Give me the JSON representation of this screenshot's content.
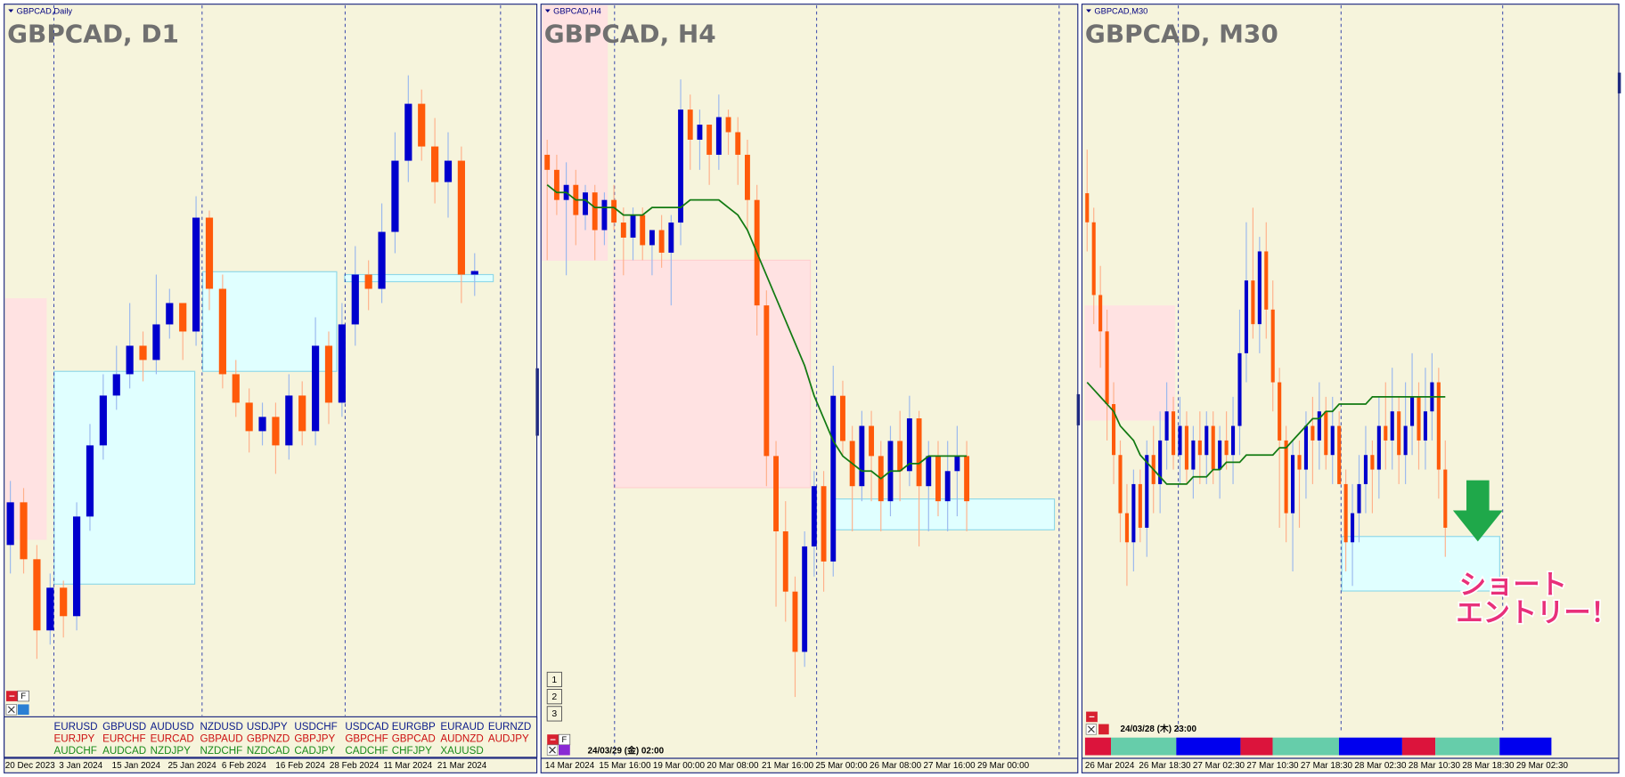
{
  "chart_data": [
    {
      "type": "candlestick",
      "small_label": "GBPCAD,Daily",
      "title": "GBPCAD, D1",
      "x_labels": [
        "20 Dec 2023",
        "3 Jan 2024",
        "15 Jan 2024",
        "25 Jan 2024",
        "6 Feb 2024",
        "16 Feb 2024",
        "28 Feb 2024",
        "11 Mar 2024",
        "21 Mar 2024"
      ],
      "ylim": [
        0,
        100
      ],
      "bull_color": "#0000cd",
      "bear_color": "#ff5a0a",
      "bull_wick_color": "#9ab8ee",
      "bear_wick_color": "#ffb08a",
      "open": [
        24,
        30,
        22,
        12,
        18,
        14,
        28,
        38,
        45,
        48,
        52,
        50,
        55,
        58,
        54,
        70,
        60,
        48,
        44,
        40,
        42,
        38,
        45,
        40,
        52,
        44,
        55,
        62,
        60,
        68,
        78,
        86,
        80,
        75,
        78,
        62
      ],
      "high": [
        33,
        32,
        24,
        20,
        19,
        30,
        41,
        48,
        52,
        58,
        54,
        62,
        60,
        58,
        73,
        71,
        62,
        50,
        46,
        44,
        44,
        48,
        47,
        56,
        54,
        58,
        66,
        64,
        72,
        82,
        90,
        88,
        84,
        82,
        80,
        65
      ],
      "low": [
        20,
        20,
        8,
        10,
        11,
        12,
        26,
        36,
        43,
        46,
        47,
        48,
        53,
        50,
        52,
        57,
        46,
        42,
        37,
        38,
        34,
        36,
        38,
        38,
        41,
        42,
        52,
        57,
        58,
        65,
        75,
        78,
        72,
        70,
        58,
        59
      ],
      "close": [
        30,
        22,
        12,
        18,
        14,
        28,
        38,
        45,
        48,
        52,
        50,
        55,
        58,
        54,
        70,
        60,
        48,
        44,
        40,
        42,
        38,
        45,
        40,
        52,
        44,
        55,
        62,
        60,
        68,
        78,
        86,
        80,
        75,
        78,
        62,
        62.5
      ],
      "zones": [
        {
          "x": [
            -0.5,
            2.7
          ],
          "y": [
            24.8,
            58.6
          ],
          "color": "#ffe2e2",
          "border": "#ffe2e2"
        },
        {
          "x": [
            3.3,
            13.9
          ],
          "y": [
            18.5,
            48.4
          ],
          "color": "#e0ffff",
          "border": "#8fd8e8"
        },
        {
          "x": [
            14.5,
            24.6
          ],
          "y": [
            48.4,
            62.4
          ],
          "color": "#e0ffff",
          "border": "#8fd8e8"
        },
        {
          "x": [
            25.2,
            36.4
          ],
          "y": [
            61,
            62
          ],
          "color": "#e0ffff",
          "border": "#8fd8e8"
        }
      ],
      "lines": []
    },
    {
      "type": "candlestick",
      "small_label": "GBPCAD,H4",
      "title": "GBPCAD, H4",
      "x_labels": [
        "14 Mar 2024",
        "15 Mar 16:00",
        "19 Mar 00:00",
        "20 Mar 08:00",
        "21 Mar 16:00",
        "25 Mar 00:00",
        "26 Mar 08:00",
        "27 Mar 16:00",
        "29 Mar 00:00"
      ],
      "datetime": "24/03/29 (金) 02:00",
      "buttons": [
        "1",
        "2",
        "3"
      ],
      "ylim": [
        0,
        100
      ],
      "bull_color": "#0000cd",
      "bear_color": "#ff5a0a",
      "bull_wick_color": "#9ab8ee",
      "bear_wick_color": "#ffb08a",
      "open": [
        80,
        78,
        74,
        76,
        72,
        75,
        70,
        74,
        71,
        69,
        72,
        68,
        70,
        67,
        71,
        86,
        82,
        84,
        80,
        85,
        83,
        80,
        74,
        60,
        40,
        30,
        22,
        14,
        28,
        36,
        26,
        48,
        42,
        36,
        44,
        40,
        34,
        42,
        38,
        45,
        36,
        40,
        34,
        38,
        40
      ],
      "high": [
        82,
        80,
        79,
        78,
        76,
        76,
        75,
        76,
        73,
        73,
        73,
        70,
        72,
        72,
        90,
        88,
        86,
        84,
        88,
        86,
        85,
        82,
        76,
        62,
        42,
        34,
        24,
        30,
        38,
        38,
        52,
        50,
        44,
        46,
        46,
        42,
        44,
        46,
        48,
        46,
        42,
        42,
        42,
        44,
        42
      ],
      "low": [
        66,
        72,
        64,
        68,
        70,
        66,
        68,
        70,
        64,
        66,
        66,
        64,
        65,
        60,
        68,
        78,
        78,
        76,
        78,
        80,
        76,
        70,
        56,
        36,
        20,
        18,
        8,
        12,
        24,
        22,
        24,
        40,
        30,
        34,
        34,
        30,
        32,
        34,
        36,
        28,
        30,
        32,
        30,
        32,
        30
      ],
      "close": [
        78,
        74,
        76,
        72,
        75,
        70,
        74,
        71,
        69,
        72,
        68,
        70,
        67,
        71,
        86,
        82,
        84,
        80,
        85,
        83,
        80,
        74,
        60,
        40,
        30,
        22,
        14,
        28,
        36,
        26,
        48,
        42,
        36,
        44,
        40,
        34,
        42,
        38,
        45,
        36,
        40,
        34,
        38,
        40,
        34
      ],
      "zones": [
        {
          "x": [
            -0.5,
            6.3
          ],
          "y": [
            66,
            100
          ],
          "color": "#ffe2e2",
          "border": "#ffe2e2"
        },
        {
          "x": [
            7,
            27.6
          ],
          "y": [
            35.8,
            66
          ],
          "color": "#ffe2e2",
          "border": "#ffd0d0"
        },
        {
          "x": [
            30.1,
            53.2
          ],
          "y": [
            30.2,
            34.3
          ],
          "color": "#e0ffff",
          "border": "#8fd8e8"
        }
      ],
      "lines": [
        {
          "color": "#127a12",
          "values": [
            76,
            75,
            75,
            74,
            74,
            73,
            73,
            73,
            72,
            72,
            72,
            73,
            73,
            73,
            73,
            74,
            74,
            74,
            74,
            73,
            72,
            70,
            67,
            64,
            61,
            58,
            55,
            52,
            48,
            45,
            42,
            40,
            39,
            38,
            38,
            37,
            38,
            38,
            39,
            39,
            40,
            40,
            40,
            40,
            40
          ]
        }
      ]
    },
    {
      "type": "candlestick",
      "small_label": "GBPCAD,M30",
      "title": "GBPCAD, M30",
      "x_labels": [
        "26 Mar 2024",
        "26 Mar 18:30",
        "27 Mar 02:30",
        "27 Mar 10:30",
        "27 Mar 18:30",
        "28 Mar 02:30",
        "28 Mar 10:30",
        "28 Mar 18:30",
        "29 Mar 02:30"
      ],
      "datetime": "24/03/28 (木) 23:00",
      "annotation": [
        "ショート",
        "エントリー！"
      ],
      "ylim": [
        0,
        100
      ],
      "bull_color": "#0000cd",
      "bear_color": "#ff5a0a",
      "bull_wick_color": "#9ab8ee",
      "bear_wick_color": "#ffb08a",
      "open": [
        74,
        70,
        60,
        55,
        45,
        38,
        30,
        26,
        34,
        28,
        38,
        34,
        40,
        44,
        38,
        42,
        36,
        40,
        38,
        42,
        36,
        40,
        38,
        42,
        52,
        62,
        56,
        66,
        58,
        48,
        40,
        30,
        38,
        36,
        42,
        40,
        44,
        38,
        42,
        34,
        26,
        30,
        34,
        38,
        36,
        42,
        40,
        44,
        38,
        42,
        46,
        40,
        44,
        48,
        36
      ],
      "high": [
        80,
        72,
        64,
        58,
        48,
        40,
        34,
        36,
        36,
        40,
        42,
        44,
        48,
        46,
        46,
        44,
        42,
        44,
        44,
        44,
        42,
        44,
        46,
        58,
        70,
        72,
        68,
        70,
        62,
        50,
        42,
        40,
        40,
        44,
        46,
        48,
        46,
        46,
        44,
        36,
        34,
        38,
        42,
        40,
        46,
        48,
        50,
        46,
        48,
        52,
        48,
        50,
        52,
        50,
        40
      ],
      "low": [
        66,
        56,
        50,
        40,
        34,
        26,
        20,
        22,
        26,
        24,
        30,
        30,
        36,
        36,
        34,
        34,
        32,
        34,
        34,
        34,
        32,
        36,
        34,
        38,
        48,
        54,
        52,
        54,
        44,
        28,
        26,
        22,
        28,
        32,
        34,
        36,
        36,
        34,
        34,
        22,
        20,
        26,
        30,
        30,
        32,
        36,
        36,
        34,
        34,
        38,
        36,
        36,
        40,
        32,
        24
      ],
      "close": [
        70,
        60,
        55,
        45,
        38,
        30,
        26,
        34,
        28,
        38,
        34,
        40,
        44,
        38,
        42,
        36,
        40,
        38,
        42,
        36,
        40,
        38,
        42,
        52,
        62,
        56,
        66,
        58,
        48,
        40,
        30,
        38,
        36,
        42,
        40,
        44,
        38,
        42,
        34,
        26,
        30,
        34,
        38,
        36,
        42,
        40,
        44,
        38,
        42,
        46,
        40,
        44,
        48,
        36,
        28
      ],
      "zones": [
        {
          "x": [
            -0.3,
            13.2
          ],
          "y": [
            42.8,
            58.5
          ],
          "color": "#ffe2e2",
          "border": "#ffe2e2"
        },
        {
          "x": [
            38.4,
            62.2
          ],
          "y": [
            19.3,
            26.8
          ],
          "color": "#e0ffff",
          "border": "#8fd8e8"
        }
      ],
      "lines": [
        {
          "color": "#127a12",
          "values": [
            48,
            47,
            46,
            45,
            44,
            42,
            41,
            40,
            38,
            37,
            36,
            35,
            34,
            34,
            34,
            34,
            35,
            35,
            35,
            36,
            36,
            37,
            37,
            37,
            38,
            38,
            38,
            38,
            38,
            39,
            39,
            40,
            41,
            42,
            43,
            43,
            44,
            44,
            45,
            45,
            45,
            45,
            45,
            46,
            46,
            46,
            46,
            46,
            46,
            46,
            46,
            46,
            46,
            46,
            46
          ]
        }
      ]
    }
  ],
  "symbol_table": {
    "rows": [
      [
        "EURUSD",
        "GBPUSD",
        "AUDUSD",
        "NZDUSD",
        "USDJPY",
        "USDCHF",
        "USDCAD",
        "EURGBP",
        "EURAUD",
        "EURNZD"
      ],
      [
        "EURJPY",
        "EURCHF",
        "EURCAD",
        "GBPAUD",
        "GBPNZD",
        "GBPJPY",
        "GBPCHF",
        "GBPCAD",
        "AUDNZD",
        "AUDJPY"
      ],
      [
        "AUDCHF",
        "AUDCAD",
        "NZDJPY",
        "NZDCHF",
        "NZDCAD",
        "CADJPY",
        "CADCHF",
        "CHFJPY",
        "XAUUSD"
      ]
    ]
  },
  "f_button": "F"
}
